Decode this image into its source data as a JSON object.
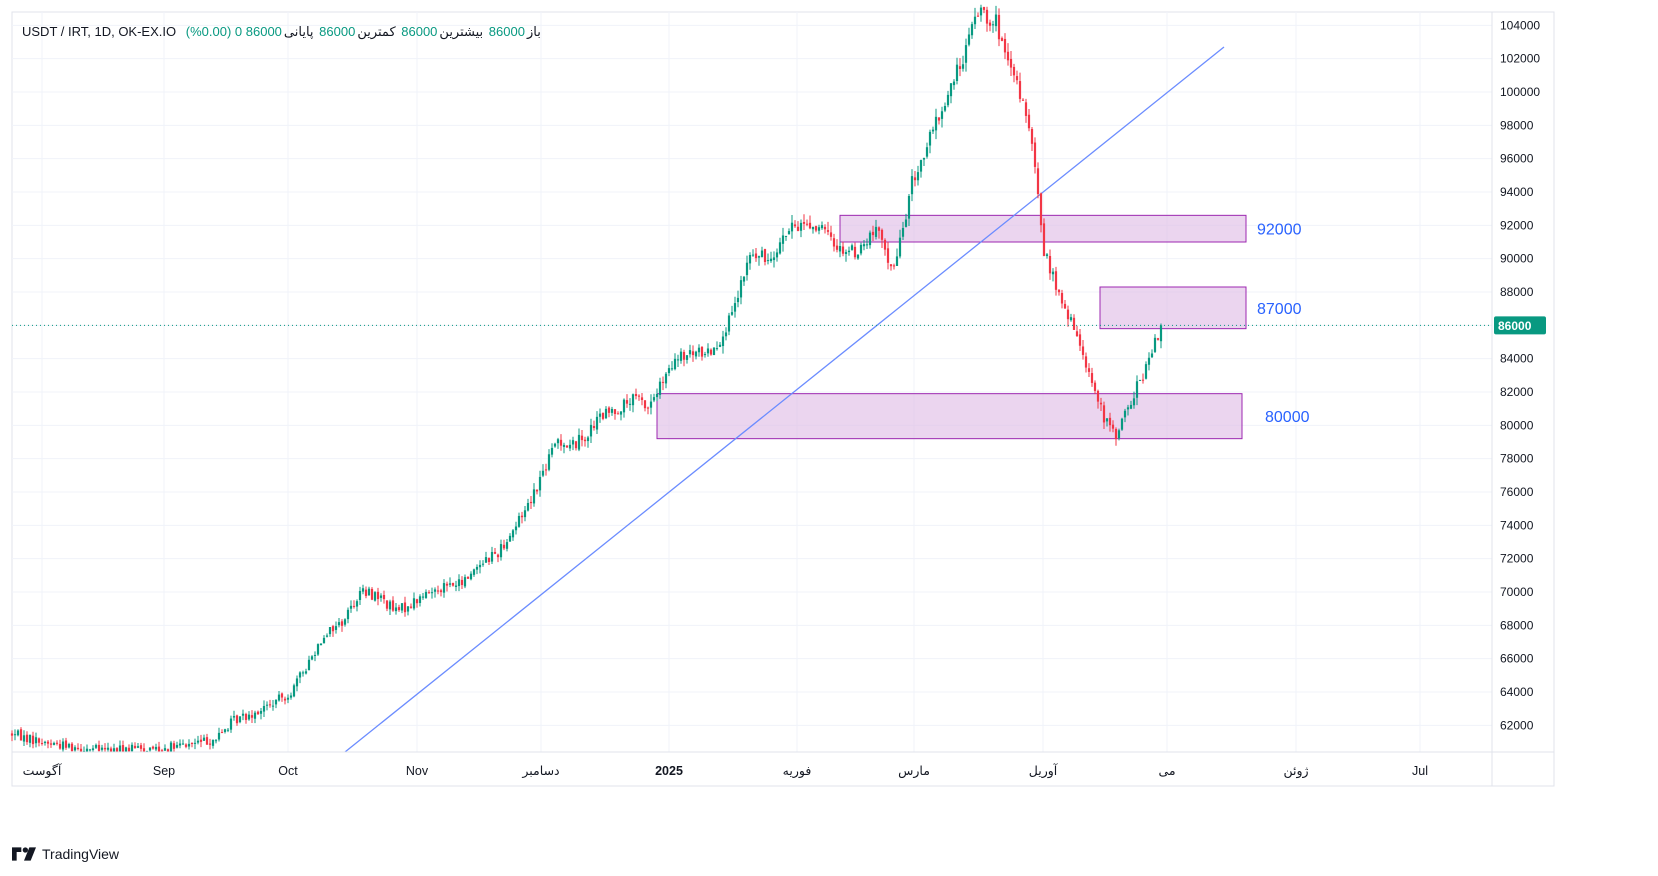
{
  "legend": {
    "symbol": "USDT / IRT, 1D, OK-EX.IO",
    "open_label": "باز",
    "open": "86000",
    "high_label": "بیشترین",
    "high": "86000",
    "low_label": "کمترین",
    "low": "86000",
    "close_label": "پایانی",
    "close": "86000",
    "change": "0 (0.00%)"
  },
  "brand": {
    "name": "TradingView"
  },
  "colors": {
    "up": "#089981",
    "down": "#f23645",
    "zone_fill": "#e1bee7",
    "zone_border": "#9c27b0",
    "trend": "#6b8cff",
    "price_tag": "#089981"
  },
  "chart_data": {
    "type": "candlestick",
    "title": "USDT / IRT, 1D, OK-EX.IO",
    "ylim": [
      60400,
      104800
    ],
    "y_ticks": [
      62000,
      64000,
      66000,
      68000,
      70000,
      72000,
      74000,
      76000,
      78000,
      80000,
      82000,
      84000,
      86000,
      88000,
      90000,
      92000,
      94000,
      96000,
      98000,
      100000,
      102000,
      104000
    ],
    "x_labels": [
      {
        "text": "آگوست",
        "bold": false
      },
      {
        "text": "Sep",
        "bold": false
      },
      {
        "text": "Oct",
        "bold": false
      },
      {
        "text": "Nov",
        "bold": false
      },
      {
        "text": "دسامبر",
        "bold": false
      },
      {
        "text": "2025",
        "bold": true
      },
      {
        "text": "فوریه",
        "bold": false
      },
      {
        "text": "مارس",
        "bold": false
      },
      {
        "text": "آوریل",
        "bold": false
      },
      {
        "text": "می",
        "bold": false
      },
      {
        "text": "ژوئن",
        "bold": false
      },
      {
        "text": "Jul",
        "bold": false
      }
    ],
    "last_price": 86000,
    "last_price_label": "86000",
    "zones": [
      {
        "label": "92000",
        "from": 91000,
        "to": 92600
      },
      {
        "label": "87000",
        "from": 85800,
        "to": 88300
      },
      {
        "label": "80000",
        "from": 79200,
        "to": 81900
      }
    ],
    "anchors": [
      [
        0,
        61500
      ],
      [
        10,
        61000
      ],
      [
        30,
        60500
      ],
      [
        55,
        60700
      ],
      [
        68,
        61200
      ],
      [
        74,
        62300
      ],
      [
        86,
        63200
      ],
      [
        93,
        64000
      ],
      [
        98,
        65500
      ],
      [
        104,
        67500
      ],
      [
        110,
        68200
      ],
      [
        116,
        70000
      ],
      [
        122,
        69800
      ],
      [
        128,
        68800
      ],
      [
        134,
        69400
      ],
      [
        142,
        70300
      ],
      [
        150,
        70500
      ],
      [
        156,
        71800
      ],
      [
        162,
        72400
      ],
      [
        168,
        74000
      ],
      [
        174,
        76000
      ],
      [
        178,
        77600
      ],
      [
        182,
        79200
      ],
      [
        186,
        78700
      ],
      [
        192,
        79500
      ],
      [
        196,
        80500
      ],
      [
        202,
        81000
      ],
      [
        208,
        81600
      ],
      [
        212,
        81100
      ],
      [
        216,
        82300
      ],
      [
        222,
        84000
      ],
      [
        228,
        84300
      ],
      [
        234,
        84600
      ],
      [
        240,
        86500
      ],
      [
        246,
        90200
      ],
      [
        252,
        90000
      ],
      [
        258,
        91500
      ],
      [
        264,
        92200
      ],
      [
        270,
        91700
      ],
      [
        276,
        90600
      ],
      [
        282,
        90400
      ],
      [
        288,
        91700
      ],
      [
        294,
        89300
      ],
      [
        300,
        94500
      ],
      [
        306,
        97200
      ],
      [
        312,
        99800
      ],
      [
        318,
        102600
      ],
      [
        322,
        105000
      ],
      [
        328,
        104200
      ],
      [
        332,
        101500
      ],
      [
        336,
        100000
      ],
      [
        340,
        96800
      ],
      [
        344,
        90500
      ],
      [
        350,
        87200
      ],
      [
        356,
        85000
      ],
      [
        360,
        82600
      ],
      [
        364,
        80300
      ],
      [
        368,
        79500
      ],
      [
        372,
        81000
      ],
      [
        376,
        82700
      ],
      [
        380,
        84300
      ],
      [
        383,
        86000
      ]
    ],
    "date_start_x": 12,
    "bar_spacing": 3.0
  }
}
